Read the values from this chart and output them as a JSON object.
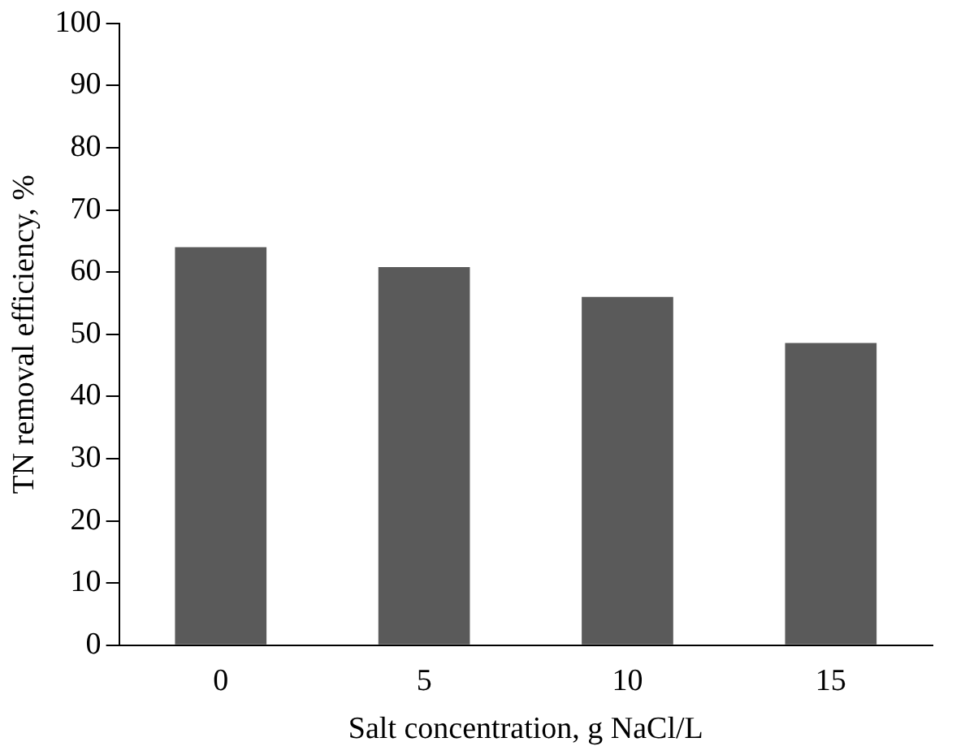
{
  "chart_data": {
    "type": "bar",
    "xlabel": "Salt concentration, g NaCl/L",
    "ylabel": "TN removal efficiency, %",
    "categories": [
      "0",
      "5",
      "10",
      "15"
    ],
    "values": [
      64,
      60.8,
      56,
      48.6
    ],
    "color": "#5a5a5a",
    "ylim": [
      0,
      100
    ],
    "yticks": [
      0,
      10,
      20,
      30,
      40,
      50,
      60,
      70,
      80,
      90,
      100
    ],
    "grid": false,
    "legend": false
  }
}
